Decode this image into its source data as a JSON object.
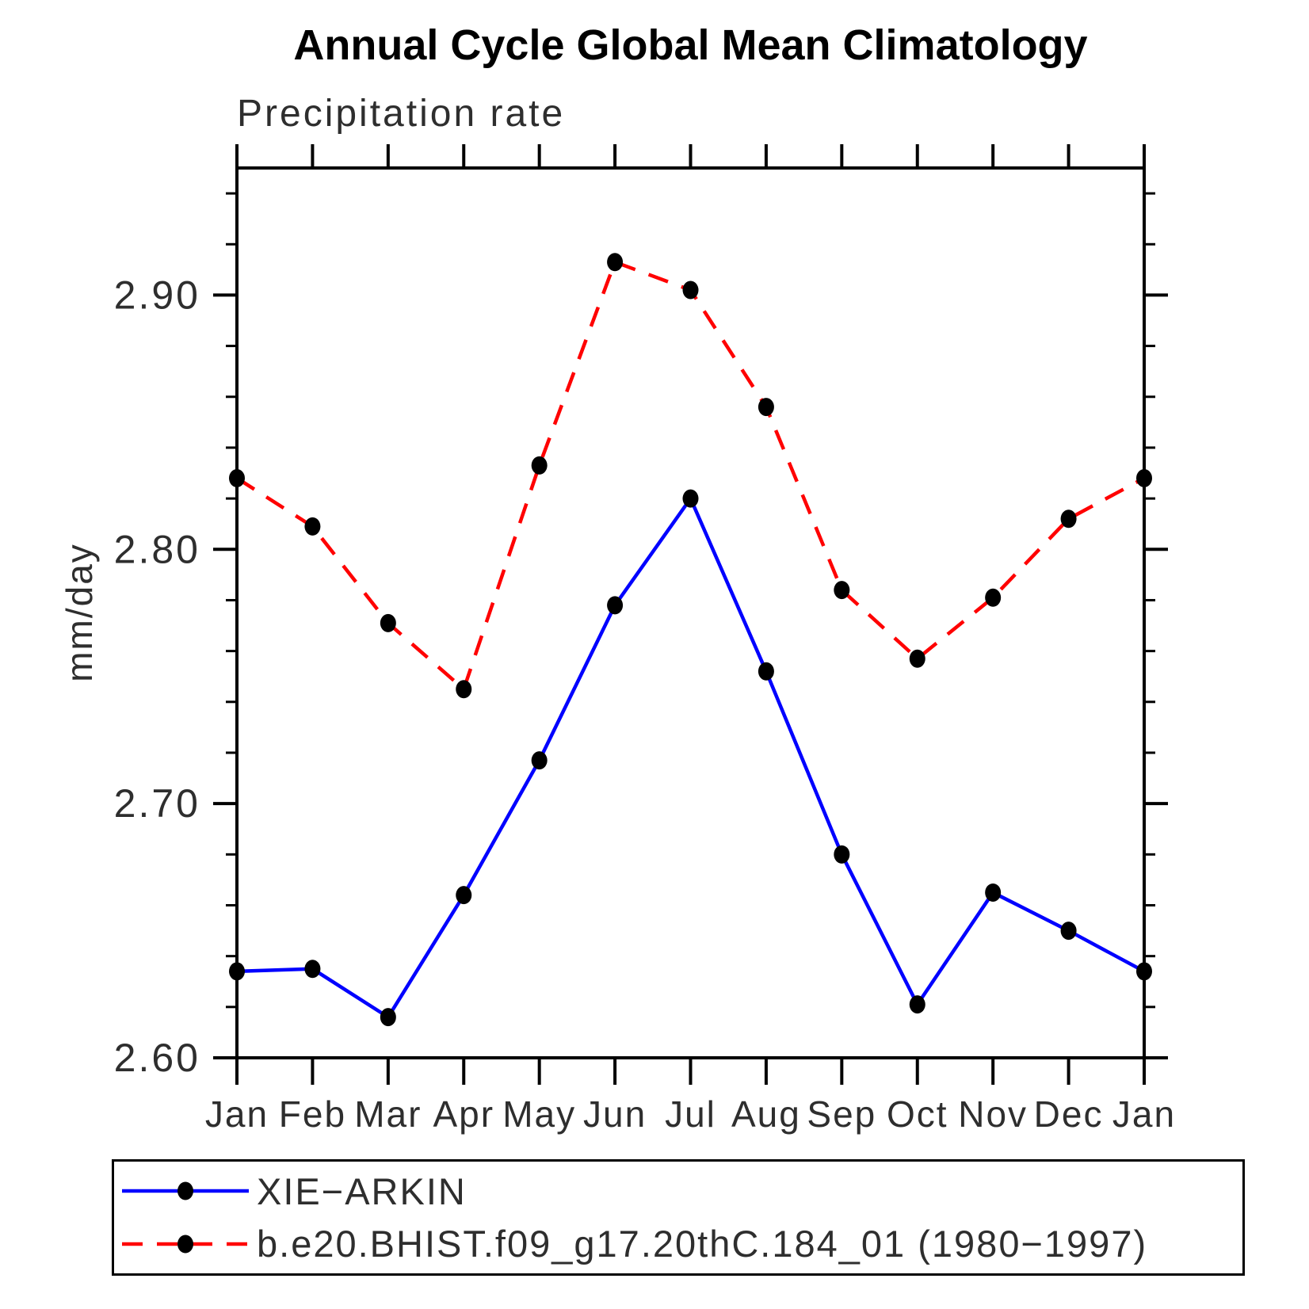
{
  "page": {
    "title": "Annual Cycle Global Mean Climatology",
    "subtitle": "Precipitation rate",
    "ylabel": "mm/day"
  },
  "legend": {
    "position": "bottom",
    "items": [
      {
        "label": "XIE−ARKIN",
        "color": "#0000ff",
        "line_style": "solid",
        "marker": "filled-circle",
        "marker_color": "#000000"
      },
      {
        "label": "b.e20.BHIST.f09_g17.20thC.184_01 (1980−1997)",
        "color": "#ff0000",
        "line_style": "dashed",
        "marker": "filled-circle",
        "marker_color": "#000000"
      }
    ]
  },
  "chart_data": {
    "type": "line",
    "title": "Annual Cycle Global Mean Climatology",
    "subtitle": "Precipitation rate",
    "xlabel": "",
    "ylabel": "mm/day",
    "categories": [
      "Jan",
      "Feb",
      "Mar",
      "Apr",
      "May",
      "Jun",
      "Jul",
      "Aug",
      "Sep",
      "Oct",
      "Nov",
      "Dec",
      "Jan"
    ],
    "series": [
      {
        "name": "XIE−ARKIN",
        "color": "#0000ff",
        "style": "solid",
        "values": [
          2.634,
          2.635,
          2.616,
          2.664,
          2.717,
          2.778,
          2.82,
          2.752,
          2.68,
          2.621,
          2.665,
          2.65,
          2.634
        ]
      },
      {
        "name": "b.e20.BHIST.f09_g17.20thC.184_01 (1980−1997)",
        "color": "#ff0000",
        "style": "dashed",
        "values": [
          2.828,
          2.809,
          2.771,
          2.745,
          2.833,
          2.913,
          2.902,
          2.856,
          2.784,
          2.757,
          2.781,
          2.812,
          2.828
        ]
      }
    ],
    "ylim": [
      2.6,
      2.95
    ],
    "yticks_major": [
      2.6,
      2.7,
      2.8,
      2.9
    ],
    "ytick_labels": [
      "2.60",
      "2.70",
      "2.80",
      "2.90"
    ],
    "y_minor_step": 0.02,
    "grid": false,
    "marker_color": "#000000",
    "axis_color": "#000000",
    "text_color": "#2e2e2e"
  }
}
